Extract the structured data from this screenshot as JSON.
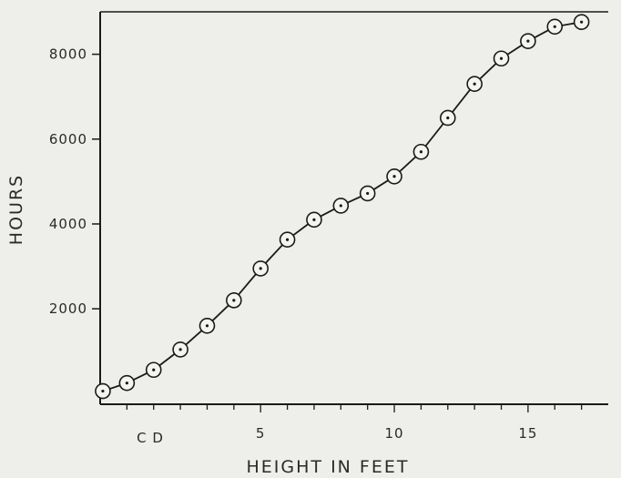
{
  "chart_data": {
    "type": "line",
    "title": "",
    "xlabel": "HEIGHT IN FEET",
    "ylabel": "HOURS",
    "x_origin_label": "C D",
    "xlim": [
      -1,
      18
    ],
    "ylim": [
      -250,
      9000
    ],
    "xticks": [
      5,
      10,
      15
    ],
    "yticks": [
      2000,
      4000,
      6000,
      8000
    ],
    "grid": false,
    "markers": "open-circle-with-dot",
    "colors": {
      "line": "#1a1a1a",
      "marker_fill": "#f4f4f0",
      "background": "#eeeeea"
    },
    "series": [
      {
        "x": [
          -0.9,
          0,
          1,
          2,
          3,
          4,
          5,
          6,
          7,
          8,
          9,
          10,
          11,
          12,
          13,
          14,
          15,
          16,
          17
        ],
        "y": [
          60,
          250,
          560,
          1040,
          1600,
          2200,
          2950,
          3630,
          4100,
          4430,
          4720,
          5120,
          5700,
          6500,
          7300,
          7900,
          8310,
          8650,
          8760
        ]
      }
    ]
  }
}
